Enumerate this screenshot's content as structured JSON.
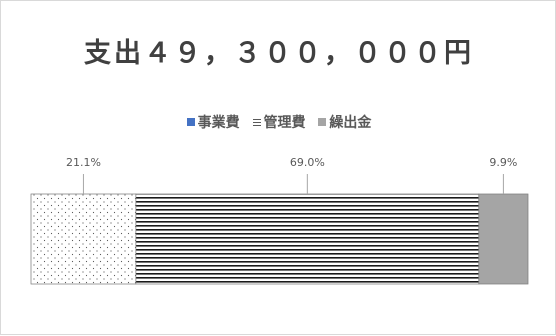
{
  "chart_data": {
    "type": "bar",
    "orientation": "horizontal",
    "stacked": "percent",
    "title": "支出４９，３００，０００円",
    "series": [
      {
        "name": "事業費",
        "value": 21.1,
        "label": "21.1%",
        "fill": "dots"
      },
      {
        "name": "管理費",
        "value": 69.0,
        "label": "69.0%",
        "fill": "horizontal-lines"
      },
      {
        "name": "繰出金",
        "value": 9.9,
        "label": "9.9%",
        "fill": "solid-gray"
      }
    ],
    "legend_position": "top",
    "grid": false
  },
  "colors": {
    "series_1_legend": "#4472c4",
    "series_3_fill": "#a5a5a5",
    "text": "#595959"
  }
}
